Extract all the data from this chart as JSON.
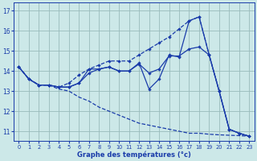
{
  "hours": [
    0,
    1,
    2,
    3,
    4,
    5,
    6,
    7,
    8,
    9,
    10,
    11,
    12,
    13,
    14,
    15,
    16,
    17,
    18,
    19,
    20,
    21,
    22,
    23
  ],
  "line_main": [
    14.2,
    13.6,
    13.3,
    13.3,
    13.2,
    13.2,
    13.4,
    14.1,
    14.1,
    14.2,
    14.0,
    14.0,
    14.4,
    13.1,
    13.6,
    14.8,
    14.7,
    16.5,
    16.7,
    14.8,
    13.0,
    11.1,
    10.9,
    10.75
  ],
  "line_upper": [
    14.2,
    13.6,
    13.3,
    13.3,
    13.2,
    13.4,
    13.8,
    14.1,
    14.3,
    14.5,
    14.5,
    14.5,
    14.8,
    15.1,
    15.4,
    15.7,
    16.1,
    16.5,
    16.7,
    14.8,
    13.0,
    11.1,
    10.9,
    10.75
  ],
  "line_lower": [
    14.2,
    13.6,
    13.3,
    13.3,
    13.1,
    13.0,
    12.7,
    12.5,
    12.2,
    12.0,
    11.8,
    11.6,
    11.4,
    11.3,
    11.2,
    11.1,
    11.0,
    10.9,
    10.9,
    10.85,
    10.82,
    10.8,
    10.78,
    10.75
  ],
  "line_flat": [
    14.2,
    13.6,
    13.3,
    13.3,
    13.2,
    13.2,
    13.4,
    13.9,
    14.1,
    14.2,
    14.0,
    14.0,
    14.35,
    13.9,
    14.1,
    14.75,
    14.75,
    15.1,
    15.2,
    14.8,
    13.0,
    11.1,
    10.9,
    10.75
  ],
  "bg_color": "#cce8e8",
  "line_color": "#1a3caa",
  "grid_color": "#99bbbb",
  "xlabel": "Graphe des températures (°c)",
  "yticks": [
    11,
    12,
    13,
    14,
    15,
    16,
    17
  ],
  "ylim": [
    10.5,
    17.4
  ],
  "xlim": [
    -0.5,
    23.5
  ]
}
